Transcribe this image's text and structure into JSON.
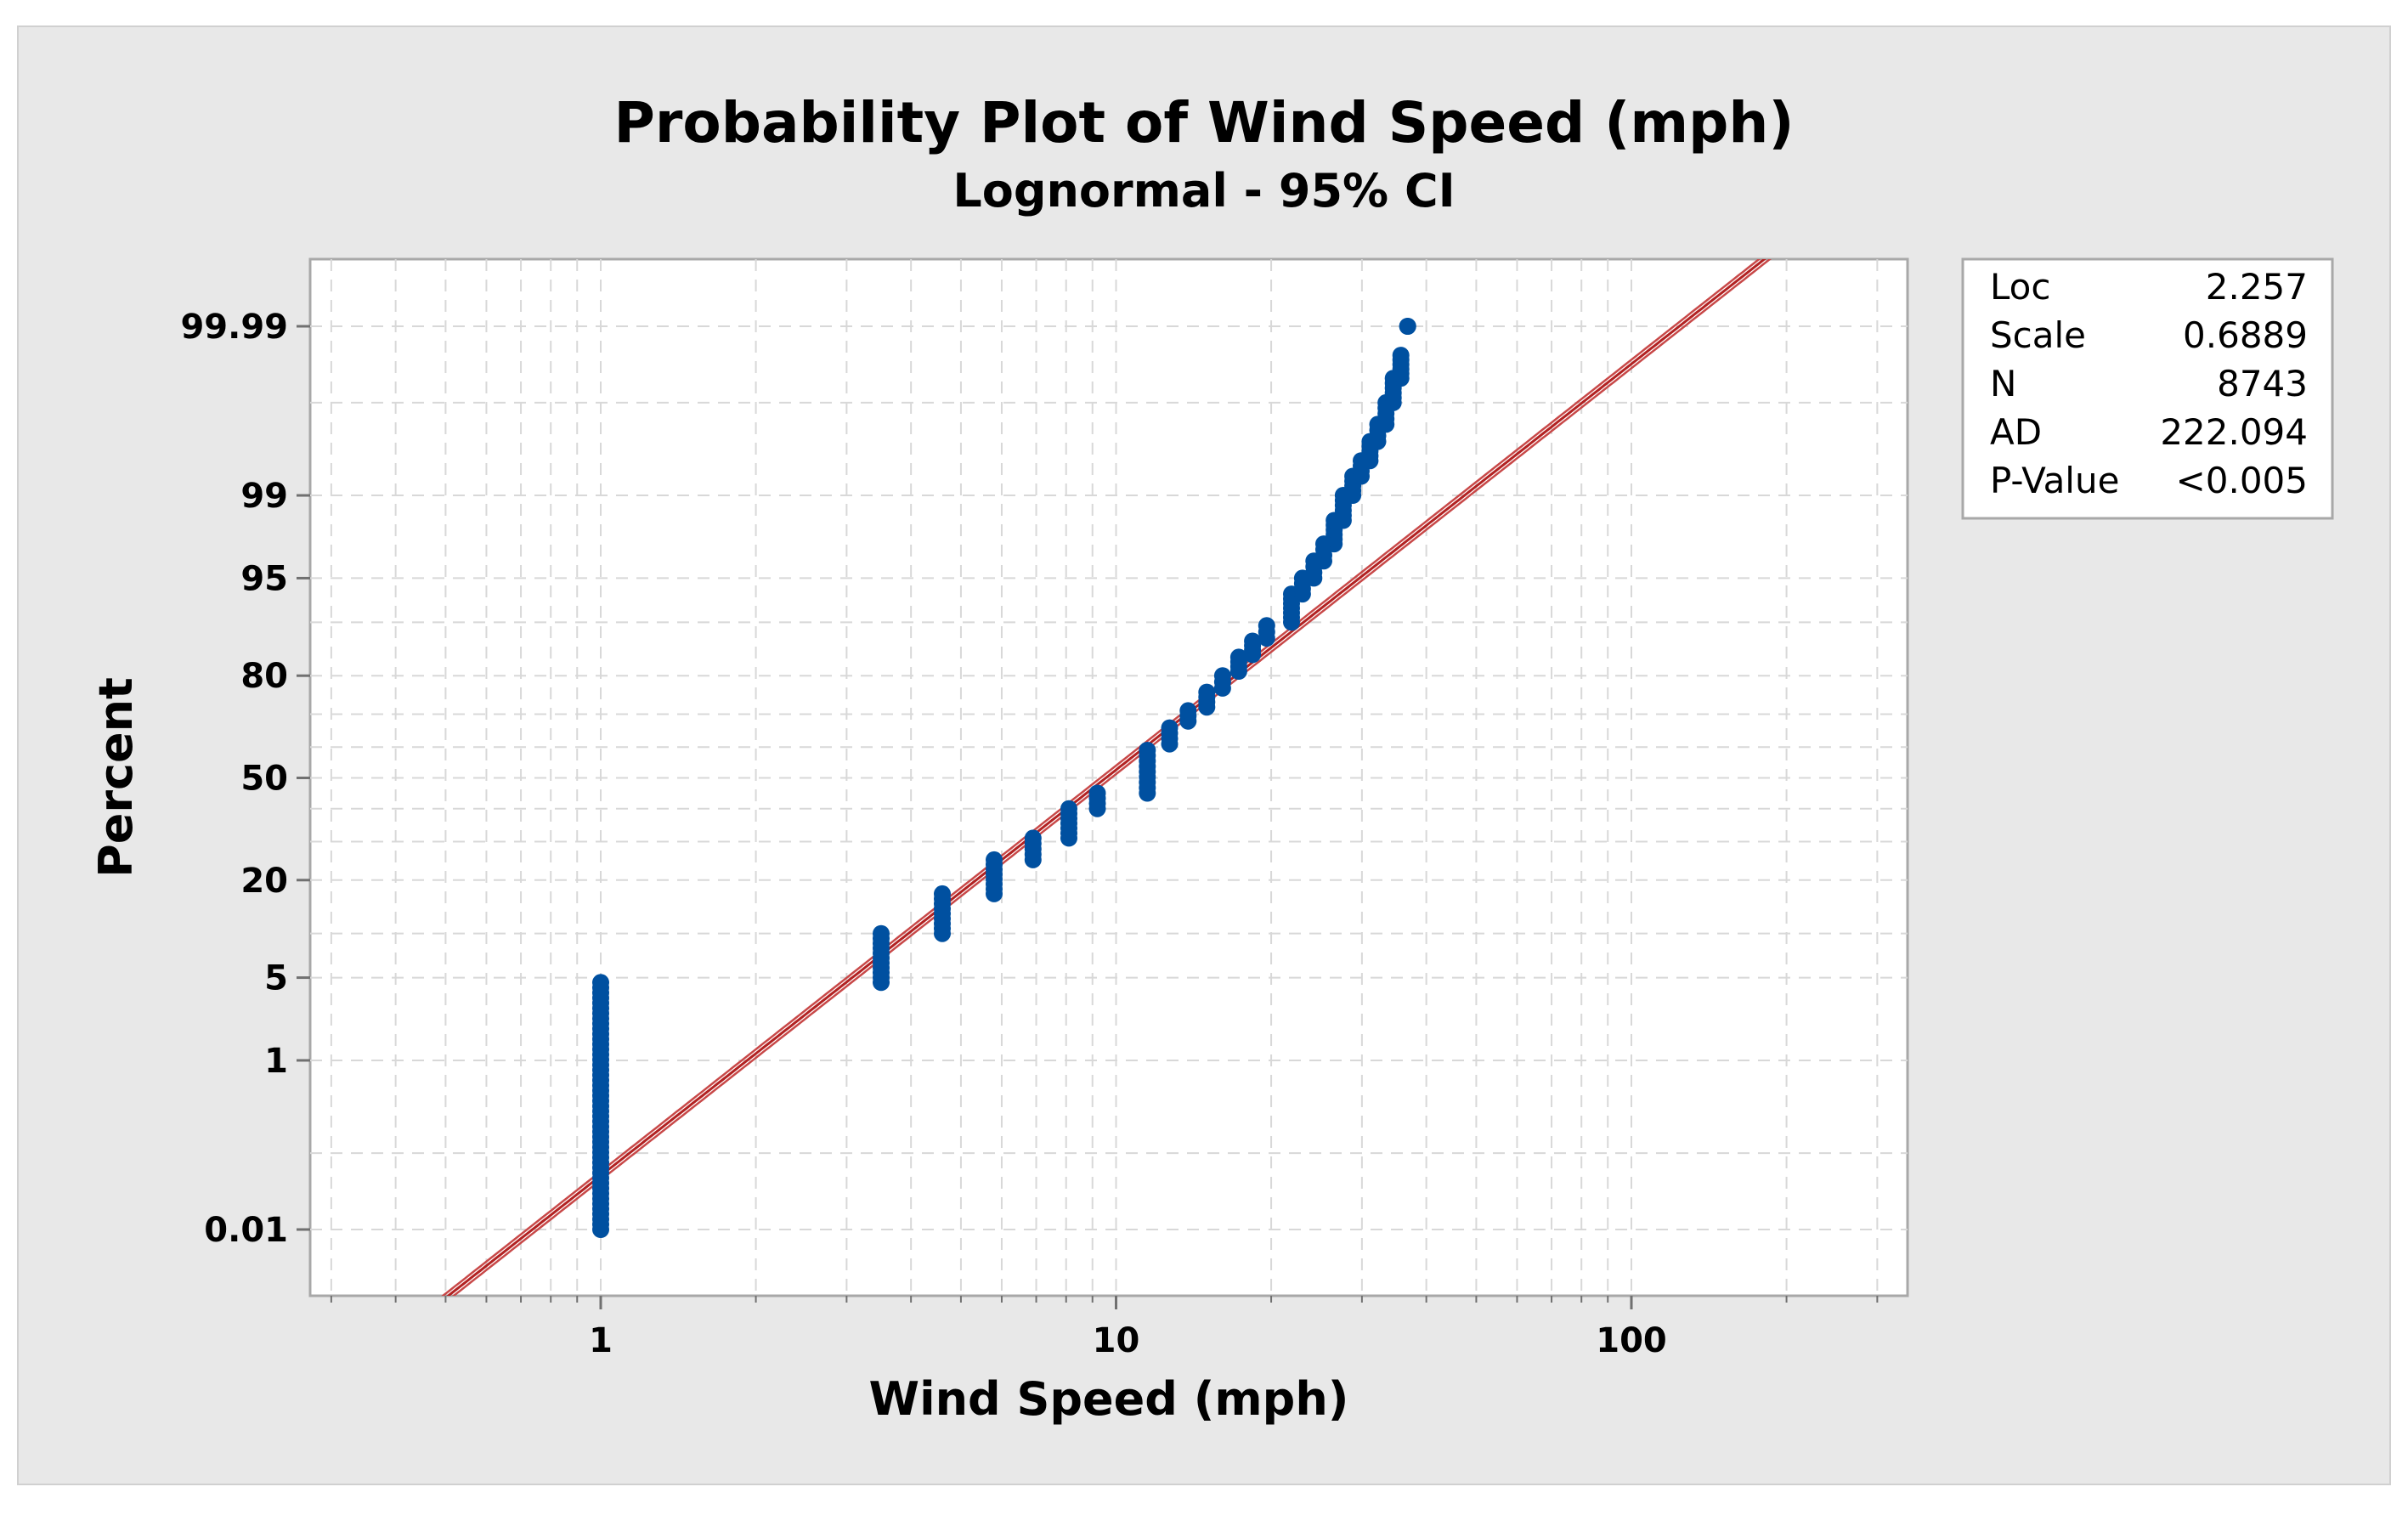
{
  "chart_data": {
    "type": "scatter",
    "title": "Probability Plot of Wind Speed (mph)",
    "subtitle": "Lognormal - 95% CI",
    "xlabel": "Wind Speed (mph)",
    "ylabel": "Percent",
    "x_scale": "log",
    "y_scale": "lognormal-probability",
    "xlim": [
      0.3,
      300
    ],
    "ylim": [
      0.001,
      99.995
    ],
    "grid": true,
    "x_ticks": [
      {
        "value": 1,
        "label": "1"
      },
      {
        "value": 10,
        "label": "10"
      },
      {
        "value": 100,
        "label": "100"
      }
    ],
    "y_ticks": [
      {
        "value": 0.01,
        "label": "0.01"
      },
      {
        "value": 1,
        "label": "1"
      },
      {
        "value": 5,
        "label": "5"
      },
      {
        "value": 20,
        "label": "20"
      },
      {
        "value": 50,
        "label": "50"
      },
      {
        "value": 80,
        "label": "80"
      },
      {
        "value": 95,
        "label": "95"
      },
      {
        "value": 99,
        "label": "99"
      },
      {
        "value": 99.99,
        "label": "99.99"
      }
    ],
    "fit": {
      "loc": 2.257,
      "scale": 0.6889
    },
    "series": [
      {
        "groups": [
          {
            "x": 1.0,
            "y_from": 0.01,
            "y_to": 4.6
          },
          {
            "x": 3.5,
            "y_from": 4.6,
            "y_to": 10.0
          },
          {
            "x": 4.6,
            "y_from": 10.0,
            "y_to": 17.0
          },
          {
            "x": 5.8,
            "y_from": 17.0,
            "y_to": 25.0
          },
          {
            "x": 6.9,
            "y_from": 25.0,
            "y_to": 31.0
          },
          {
            "x": 8.1,
            "y_from": 31.0,
            "y_to": 40.0
          },
          {
            "x": 9.2,
            "y_from": 40.0,
            "y_to": 45.0
          },
          {
            "x": 11.5,
            "y_from": 45.0,
            "y_to": 59.0
          },
          {
            "x": 12.7,
            "y_from": 61.0,
            "y_to": 66.0
          },
          {
            "x": 13.8,
            "y_from": 68.0,
            "y_to": 71.0
          },
          {
            "x": 15.0,
            "y_from": 72.0,
            "y_to": 76.0
          },
          {
            "x": 16.1,
            "y_from": 77.0,
            "y_to": 80.0
          },
          {
            "x": 17.3,
            "y_from": 81.0,
            "y_to": 84.0
          },
          {
            "x": 18.4,
            "y_from": 84.5,
            "y_to": 87.0
          },
          {
            "x": 19.6,
            "y_from": 87.5,
            "y_to": 89.5
          },
          {
            "x": 21.9,
            "y_from": 90.0,
            "y_to": 93.5
          },
          {
            "x": 23.0,
            "y_from": 93.5,
            "y_to": 95.0
          },
          {
            "x": 24.2,
            "y_from": 95.0,
            "y_to": 96.3
          },
          {
            "x": 25.3,
            "y_from": 96.3,
            "y_to": 97.3
          },
          {
            "x": 26.5,
            "y_from": 97.3,
            "y_to": 98.3
          },
          {
            "x": 27.6,
            "y_from": 98.3,
            "y_to": 99.0
          },
          {
            "x": 28.8,
            "y_from": 99.0,
            "y_to": 99.35
          },
          {
            "x": 29.9,
            "y_from": 99.35,
            "y_to": 99.55
          },
          {
            "x": 31.1,
            "y_from": 99.55,
            "y_to": 99.72
          },
          {
            "x": 32.2,
            "y_from": 99.72,
            "y_to": 99.82
          },
          {
            "x": 33.4,
            "y_from": 99.82,
            "y_to": 99.9
          },
          {
            "x": 34.5,
            "y_from": 99.9,
            "y_to": 99.95
          },
          {
            "x": 35.7,
            "y_from": 99.95,
            "y_to": 99.975
          },
          {
            "x": 36.8,
            "y_from": 99.99,
            "y_to": 99.99
          }
        ]
      }
    ],
    "stats": [
      {
        "label": "Loc",
        "value": "2.257"
      },
      {
        "label": "Scale",
        "value": "0.6889"
      },
      {
        "label": "N",
        "value": "8743"
      },
      {
        "label": "AD",
        "value": "222.094"
      },
      {
        "label": "P-Value",
        "value": "<0.005"
      }
    ],
    "colors": {
      "points": "#0050a0",
      "fit_line": "#b22222",
      "ci_band": "#c84848",
      "panel_bg": "#e8e8e8",
      "plot_bg": "#ffffff",
      "grid": "#d8d8d8"
    }
  }
}
